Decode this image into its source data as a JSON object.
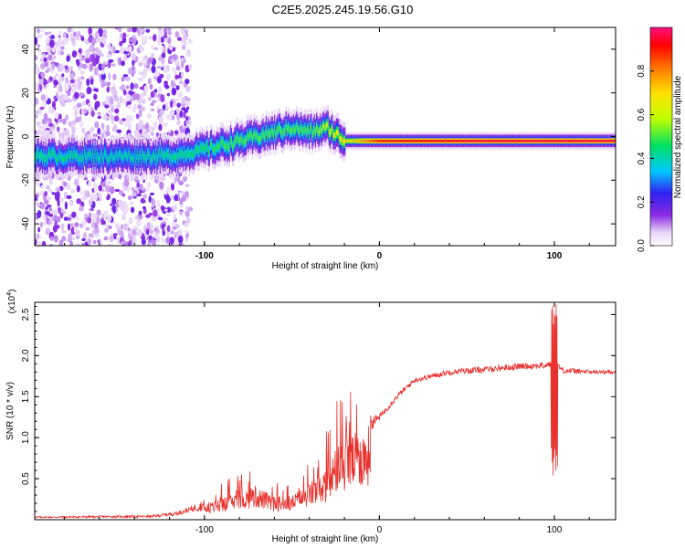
{
  "title": "C2E5.2025.245.19.56.G10",
  "chart_data": [
    {
      "type": "heatmap",
      "ylabel": "Frequency (Hz)",
      "xlabel": "Height of straight line (km)",
      "xlim": [
        -197,
        135
      ],
      "ylim": [
        -50,
        50
      ],
      "xticks": [
        -100,
        0,
        100
      ],
      "xtick_labels": [
        "-100",
        "0",
        "100"
      ],
      "yticks": [
        -40,
        -20,
        0,
        20,
        40
      ],
      "ytick_labels": [
        "-40",
        "-20",
        "0",
        "20",
        "40"
      ],
      "colorbar": {
        "label": "Normalized spectral amplitude",
        "range": [
          0,
          1
        ],
        "ticks": [
          0.0,
          0.2,
          0.4,
          0.6,
          0.8
        ],
        "tick_labels": [
          "0.0",
          "0.2",
          "0.4",
          "0.6",
          "0.8"
        ]
      },
      "ridge": {
        "description_points_x": [
          -197,
          -150,
          -120,
          -100,
          -80,
          -60,
          -50,
          -40,
          -30,
          -20,
          0,
          50,
          100,
          135
        ],
        "description_points_freq": [
          -9,
          -9,
          -9,
          -6,
          -2,
          2,
          4,
          2,
          4,
          -2,
          -2,
          -2,
          -2,
          -2
        ],
        "amplitude_x": [
          -197,
          -150,
          -110,
          -80,
          -40,
          -15,
          0,
          60,
          100,
          135
        ],
        "amplitude": [
          0.45,
          0.4,
          0.45,
          0.5,
          0.5,
          0.7,
          0.9,
          0.95,
          0.95,
          0.95
        ]
      }
    },
    {
      "type": "line",
      "ylabel": "SNR (10 * v/v)",
      "y_multiplier": "(x10",
      "y_multiplier_exp": "4",
      "y_multiplier_close": ")",
      "xlabel": "Height of straight line (km)",
      "xlim": [
        -197,
        135
      ],
      "ylim": [
        0,
        2.65
      ],
      "xticks": [
        -100,
        0,
        100
      ],
      "xtick_labels": [
        "-100",
        "0",
        "100"
      ],
      "yticks": [
        0.5,
        1.0,
        1.5,
        2.0,
        2.5
      ],
      "ytick_labels": [
        "0.5",
        "1.0",
        "1.5",
        "2.0",
        "2.5"
      ],
      "series": [
        {
          "name": "SNR",
          "color": "#e8302c",
          "envelope_x": [
            -197,
            -130,
            -115,
            -100,
            -80,
            -70,
            -60,
            -50,
            -40,
            -30,
            -25,
            -20,
            -15,
            -10,
            0,
            10,
            20,
            40,
            60,
            80,
            95,
            98,
            100,
            102,
            105,
            120,
            135
          ],
          "envelope_y": [
            0.03,
            0.04,
            0.08,
            0.18,
            0.35,
            0.4,
            0.28,
            0.3,
            0.45,
            0.6,
            0.85,
            1.0,
            1.05,
            1.1,
            1.25,
            1.5,
            1.7,
            1.8,
            1.83,
            1.87,
            1.88,
            1.9,
            1.9,
            1.88,
            1.82,
            1.8,
            1.8
          ],
          "noise_x": [
            -197,
            -130,
            -110,
            -80,
            -50,
            -40,
            -30,
            -20,
            -10,
            0,
            20,
            60,
            100,
            135
          ],
          "noise_amp": [
            0.02,
            0.03,
            0.06,
            0.3,
            0.25,
            0.55,
            0.75,
            0.85,
            0.3,
            0.08,
            0.06,
            0.08,
            0.08,
            0.04
          ],
          "spike": {
            "x": 100,
            "max": 2.65,
            "min": 0.5
          }
        }
      ]
    }
  ],
  "colors": {
    "axis": "#000000",
    "line": "#e8302c"
  }
}
